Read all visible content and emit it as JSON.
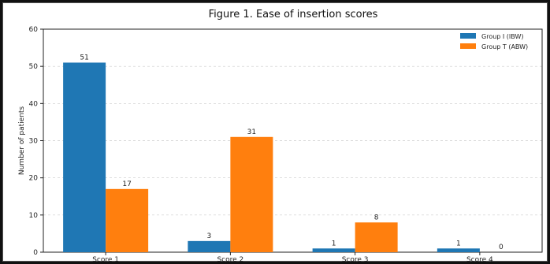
{
  "chart_data": {
    "type": "bar",
    "title": "Figure 1. Ease of insertion scores",
    "xlabel": "",
    "ylabel": "Number of patients",
    "categories": [
      "Score 1",
      "Score 2",
      "Score 3",
      "Score 4"
    ],
    "series": [
      {
        "name": "Group I (IBW)",
        "values": [
          51,
          3,
          1,
          1
        ],
        "color": "#1f77b4"
      },
      {
        "name": "Group T (ABW)",
        "values": [
          17,
          31,
          8,
          0
        ],
        "color": "#ff7f0e"
      }
    ],
    "ylim": [
      0,
      60
    ],
    "yticks": [
      0,
      10,
      20,
      30,
      40,
      50,
      60
    ],
    "grid": true,
    "legend_position": "top-right",
    "data_labels": true
  }
}
